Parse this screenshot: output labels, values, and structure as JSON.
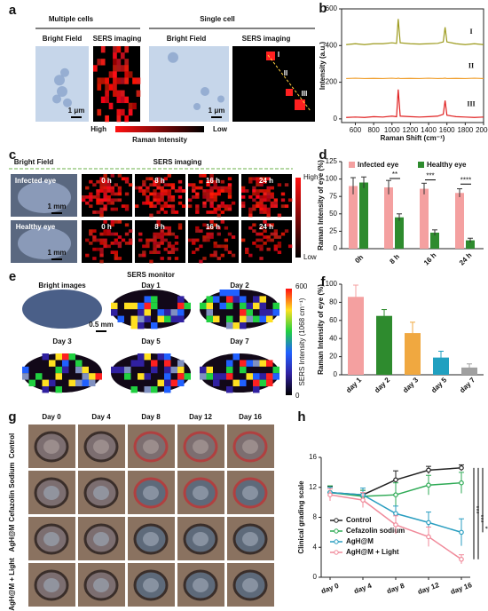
{
  "panel_labels": [
    "a",
    "b",
    "c",
    "d",
    "e",
    "f",
    "g",
    "h"
  ],
  "panel_a": {
    "groups": [
      "Multiple cells",
      "Single cell"
    ],
    "image_labels": [
      "Bright Field",
      "SERS imaging",
      "Bright Field",
      "SERS imaging"
    ],
    "scale_bars": [
      "1 μm",
      "1 μm"
    ],
    "points": [
      "I",
      "II",
      "III"
    ],
    "colorbar": {
      "high": "High",
      "low": "Low",
      "label": "Raman Intensity"
    }
  },
  "panel_c": {
    "column_groups": [
      "Bright Field",
      "SERS imaging"
    ],
    "rows": [
      "Infected eye",
      "Healthy eye"
    ],
    "times": [
      [
        "0 h",
        "8 h",
        "16 h",
        "24 h"
      ],
      [
        "0 h",
        "8 h",
        "16 h",
        "24 h"
      ]
    ],
    "scale_bars": [
      "1 mm",
      "1 mm"
    ],
    "colorbar": {
      "high": "High",
      "low": "Low"
    }
  },
  "panel_e": {
    "title": "SERS monitor",
    "images": [
      "Bright images",
      "Day 1",
      "Day 2",
      "Day 3",
      "Day 5",
      "Day 7"
    ],
    "scale_bar": "0.5 mm",
    "colorbar": {
      "label": "SERS Intensity (1068 cm⁻¹)",
      "ticks": [
        0,
        600
      ]
    }
  },
  "panel_g": {
    "columns": [
      "Day 0",
      "Day 4",
      "Day 8",
      "Day 12",
      "Day 16"
    ],
    "rows": [
      "Control",
      "Cefazolin Sodium",
      "AgH@M",
      "AgH@M + Light"
    ]
  },
  "chart_data": [
    {
      "type": "spectrum",
      "x_label": "Raman Shift (cm⁻¹)",
      "y_label": "Intensity (a.u.)",
      "x": [
        500,
        600,
        700,
        800,
        900,
        1000,
        1050,
        1068,
        1090,
        1200,
        1300,
        1400,
        1500,
        1560,
        1580,
        1600,
        1700,
        1800,
        1900,
        2000
      ],
      "series": [
        {
          "name": "I",
          "color": "#9c9a1c",
          "values": [
            405,
            410,
            405,
            410,
            410,
            415,
            412,
            545,
            415,
            410,
            408,
            410,
            412,
            420,
            500,
            420,
            410,
            405,
            410,
            405
          ]
        },
        {
          "name": "II",
          "color": "#f0a030",
          "values": [
            220,
            222,
            220,
            221,
            220,
            222,
            220,
            222,
            220,
            221,
            220,
            222,
            220,
            221,
            222,
            220,
            221,
            220,
            222,
            220
          ]
        },
        {
          "name": "III",
          "color": "#e02020",
          "values": [
            8,
            10,
            8,
            12,
            10,
            15,
            12,
            160,
            15,
            12,
            10,
            12,
            15,
            25,
            100,
            20,
            12,
            10,
            8,
            10
          ]
        }
      ],
      "xlim": [
        450,
        2000
      ],
      "xticks": [
        600,
        800,
        1000,
        1200,
        1400,
        1600,
        1800,
        2000
      ],
      "ylim": [
        -20,
        600
      ],
      "yticks": [
        0,
        200,
        400,
        600
      ]
    },
    {
      "type": "grouped_bar",
      "y_label": "Raman Intensity of eye (%)",
      "categories": [
        "0h",
        "8 h",
        "16 h",
        "24 h"
      ],
      "series": [
        {
          "name": "Infected eye",
          "color": "#f4a0a0",
          "values": [
            90,
            88,
            86,
            80
          ],
          "errors": [
            12,
            10,
            8,
            6
          ]
        },
        {
          "name": "Healthy eye",
          "color": "#2e8b2e",
          "values": [
            95,
            45,
            23,
            12
          ],
          "errors": [
            8,
            5,
            4,
            3
          ]
        }
      ],
      "annotations": [
        "**",
        "***",
        "****"
      ],
      "ylim": [
        0,
        125
      ],
      "yticks": [
        0,
        25,
        50,
        75,
        100,
        125
      ]
    },
    {
      "type": "bar",
      "y_label": "Raman Intensity of eye (%)",
      "categories": [
        "day 1",
        "day 2",
        "day 3",
        "day 5",
        "day 7"
      ],
      "values": [
        86,
        65,
        46,
        19,
        8
      ],
      "errors": [
        13,
        7,
        12,
        7,
        4
      ],
      "colors": [
        "#f4a0a0",
        "#2e8b2e",
        "#f0a840",
        "#20a0c0",
        "#a0a0a0"
      ],
      "ylim": [
        0,
        100
      ],
      "yticks": [
        0,
        20,
        40,
        60,
        80,
        100
      ]
    },
    {
      "type": "line",
      "y_label": "Clinical grading scale",
      "categories": [
        "day 0",
        "day 4",
        "day 8",
        "day 12",
        "day 16"
      ],
      "series": [
        {
          "name": "Control",
          "color": "#222222",
          "values": [
            11.3,
            11,
            13,
            14.3,
            14.6
          ],
          "errors": [
            0.8,
            0.6,
            1.2,
            0.5,
            0.4
          ]
        },
        {
          "name": "Cefazolin sodium",
          "color": "#2eaa55",
          "values": [
            11.3,
            10.8,
            11,
            12.3,
            12.6
          ],
          "errors": [
            0.9,
            0.8,
            1.6,
            1.3,
            1.4
          ]
        },
        {
          "name": "AgH@M",
          "color": "#2a9ec0",
          "values": [
            11.3,
            11,
            8.5,
            7.3,
            6
          ],
          "errors": [
            0.7,
            0.9,
            1.0,
            1.4,
            1.8
          ]
        },
        {
          "name": "AgH@M + Light",
          "color": "#f08a9a",
          "values": [
            11,
            10.3,
            7,
            5.4,
            2.4
          ],
          "errors": [
            0.8,
            1.0,
            1.2,
            1.3,
            0.6
          ]
        }
      ],
      "annotations": [
        "***",
        "***",
        "*"
      ],
      "ylim": [
        0,
        16
      ],
      "yticks": [
        0,
        4,
        8,
        12,
        16
      ]
    }
  ]
}
